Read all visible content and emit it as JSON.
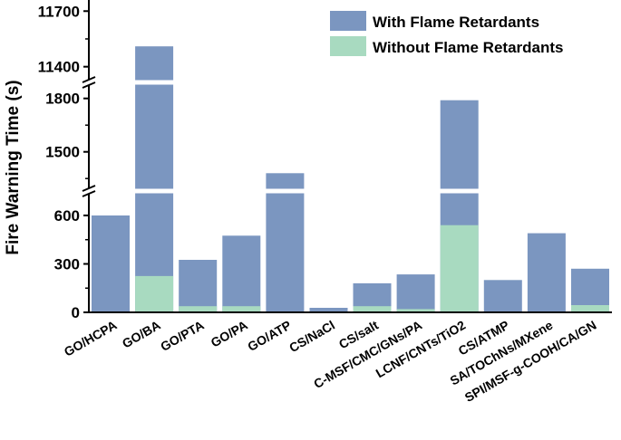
{
  "chart_data": {
    "type": "bar",
    "ylabel": "Fire Warning Time (s)",
    "categories": [
      "GO/HCPA",
      "GO/BA",
      "GO/PTA",
      "GO/PA",
      "GO/ATP",
      "CS/NaCl",
      "CS/salt",
      "C-MSF/CMC/GNs/PA",
      "LCNF/CNTs/TiO2",
      "CS/ATMP",
      "SA/TOChNs/MXene",
      "SPI/MSF-g-COOH/CA/GN"
    ],
    "series": [
      {
        "name": "With Flame Retardants",
        "color": "#7b96c0",
        "values": [
          600,
          11510,
          325,
          475,
          1380,
          28,
          180,
          235,
          1790,
          200,
          490,
          270
        ]
      },
      {
        "name": "Without Flame Retardants",
        "color": "#a8dac0",
        "values": [
          0,
          225,
          38,
          38,
          0,
          0,
          38,
          20,
          540,
          0,
          0,
          45
        ]
      }
    ],
    "y_segments": [
      {
        "range": [
          0,
          740
        ],
        "ticks": [
          0,
          300,
          600
        ]
      },
      {
        "range": [
          1290,
          1880
        ],
        "ticks": [
          1500,
          1800
        ]
      },
      {
        "range": [
          11330,
          11760
        ],
        "ticks": [
          11400,
          11700
        ]
      }
    ],
    "y_tick_labels": [
      "0",
      "300",
      "600",
      "1500",
      "1800",
      "11400",
      "11700"
    ],
    "legend": {
      "position": "top-right"
    }
  }
}
